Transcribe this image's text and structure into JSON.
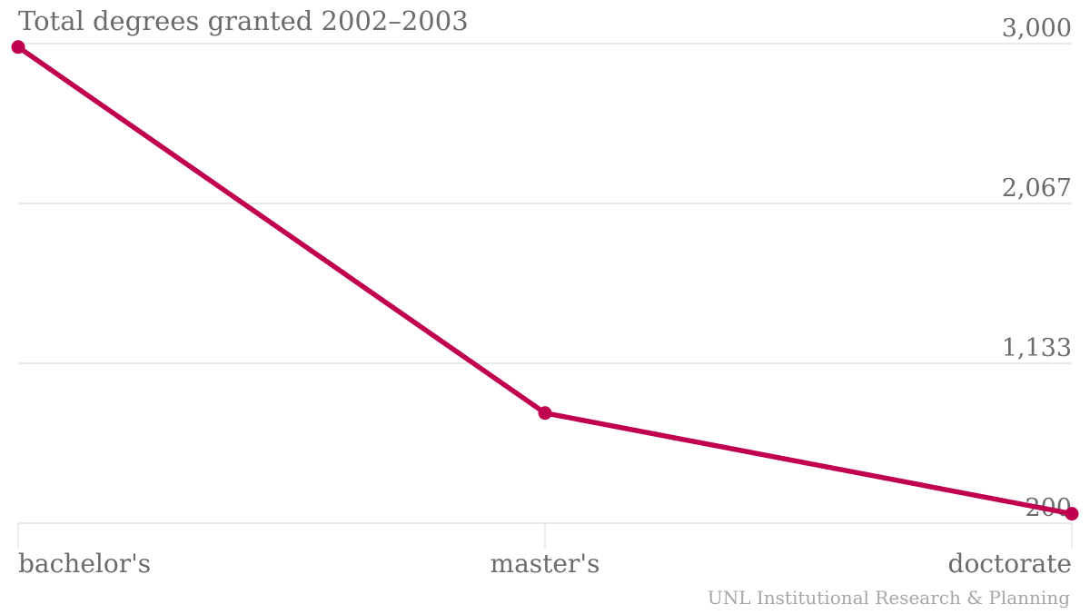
{
  "chart_data": {
    "type": "line",
    "title": "Total degrees granted 2002–2003",
    "source": "UNL Institutional Research & Planning",
    "categories": [
      "bachelor's",
      "master's",
      "doctorate"
    ],
    "series": [
      {
        "values": [
          2980,
          843,
          255
        ]
      }
    ],
    "y_ticks": [
      "3,000",
      "2,067",
      "1,133",
      "200"
    ],
    "ylim": [
      200,
      3000
    ],
    "grid": true,
    "y_axis_side": "right",
    "colors": {
      "line": "#c0004f",
      "grid": "#dedede",
      "text": "#6b6b6b",
      "source": "#a6a6a6"
    }
  }
}
